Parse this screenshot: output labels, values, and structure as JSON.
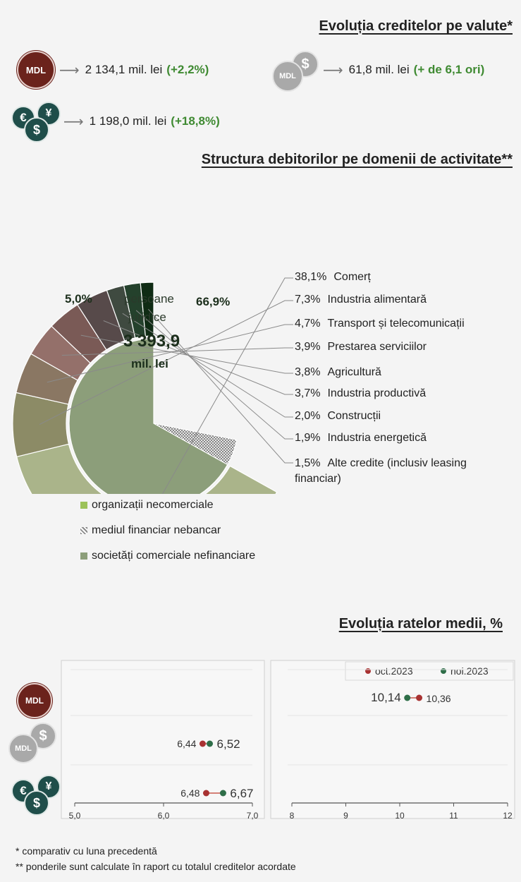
{
  "currency_section": {
    "title": "Evoluția creditelor pe valute*",
    "items": [
      {
        "icon": "mdl-coin-icon",
        "badge": "MDL",
        "value": "2 134,1 mil. lei",
        "change": "(+2,2%)"
      },
      {
        "icon": "mdl-dollar-linked-icon",
        "badge": "MDL",
        "symbol": "$",
        "value": "61,8 mil. lei",
        "change": "(+ de 6,1 ori)"
      },
      {
        "icon": "euro-dollar-yen-coins-icon",
        "symbols": [
          "€",
          "¥",
          "$"
        ],
        "value": "1 198,0 mil. lei",
        "change": "(+18,8%)"
      }
    ]
  },
  "structure_section": {
    "title": "Structura debitorilor pe domenii de activitate**",
    "center_label_1": "persoane",
    "center_label_2": "juridice",
    "center_value": "3 393,9",
    "center_unit": "mil. lei",
    "inner_labels": {
      "nonbank": "5,0%",
      "commercial": "66,9%"
    }
  },
  "legend": [
    {
      "label": "organizații necomerciale",
      "color": "#9cc25a"
    },
    {
      "label": "mediul financiar nebancar",
      "color": "#8a8a8a"
    },
    {
      "label": "societăți comerciale nefinanciare",
      "color": "#8c9e7a"
    }
  ],
  "rates_section": {
    "title": "Evoluția ratelor medii, %"
  },
  "footnotes": {
    "f1": "* comparativ cu luna precedentă",
    "f2": "** ponderile sunt calculate în raport cu totalul creditelor acordate"
  },
  "colors": {
    "accent_green": "#3f8a32",
    "oct_dot": "#a83232",
    "nov_dot": "#2e6e48"
  },
  "chart_data": [
    {
      "type": "pie",
      "title": "Structura debitorilor pe domenii de activitate**",
      "inner_ring": [
        {
          "label": "mediul financiar nebancar",
          "value": 5.0
        },
        {
          "label": "societăți comerciale nefinanciare",
          "value": 66.9
        }
      ],
      "outer_ring": [
        {
          "label": "Comerț",
          "value": 38.1,
          "text": "38,1%",
          "color": "#aab48a"
        },
        {
          "label": "Industria alimentară",
          "value": 7.3,
          "text": "7,3%",
          "color": "#8c8b66"
        },
        {
          "label": "Transport și telecomunicații",
          "value": 4.7,
          "text": "4,7%",
          "color": "#8a7763"
        },
        {
          "label": "Prestarea serviciilor",
          "value": 3.9,
          "text": "3,9%",
          "color": "#94706a"
        },
        {
          "label": "Agricultură",
          "value": 3.8,
          "text": "3,8%",
          "color": "#7a5a56"
        },
        {
          "label": "Industria productivă",
          "value": 3.7,
          "text": "3,7%",
          "color": "#574a4a"
        },
        {
          "label": "Construcții",
          "value": 2.0,
          "text": "2,0%",
          "color": "#3f4a40"
        },
        {
          "label": "Industria energetică",
          "value": 1.9,
          "text": "1,9%",
          "color": "#24412c"
        },
        {
          "label": "Alte credite (inclusiv leasing financiar)",
          "value": 1.5,
          "text": "1,5%",
          "color": "#0f2b14"
        }
      ]
    },
    {
      "type": "scatter",
      "title": "Evoluția ratelor medii, %",
      "panels": [
        {
          "xlim": [
            5.0,
            7.0
          ],
          "ticks": [
            "5,0",
            "6,0",
            "7,0"
          ],
          "rows": [
            {
              "category": "MDL",
              "oct": null,
              "nov": null
            },
            {
              "category": "MDL legat de $",
              "oct": 6.44,
              "nov": 6.52,
              "oct_text": "6,44",
              "nov_text": "6,52"
            },
            {
              "category": "valută străină",
              "oct": 6.48,
              "nov": 6.67,
              "oct_text": "6,48",
              "nov_text": "6,67"
            }
          ]
        },
        {
          "xlim": [
            8,
            12
          ],
          "ticks": [
            "8",
            "9",
            "10",
            "11",
            "12"
          ],
          "rows": [
            {
              "category": "MDL",
              "oct": 10.36,
              "nov": 10.14,
              "oct_text": "10,36",
              "nov_text": "10,14"
            },
            {
              "category": "MDL legat de $",
              "oct": null,
              "nov": null
            },
            {
              "category": "valută străină",
              "oct": null,
              "nov": null
            }
          ]
        }
      ],
      "series": [
        {
          "name": "oct.2023",
          "color": "#a83232"
        },
        {
          "name": "noi.2023",
          "color": "#2e6e48"
        }
      ]
    }
  ]
}
